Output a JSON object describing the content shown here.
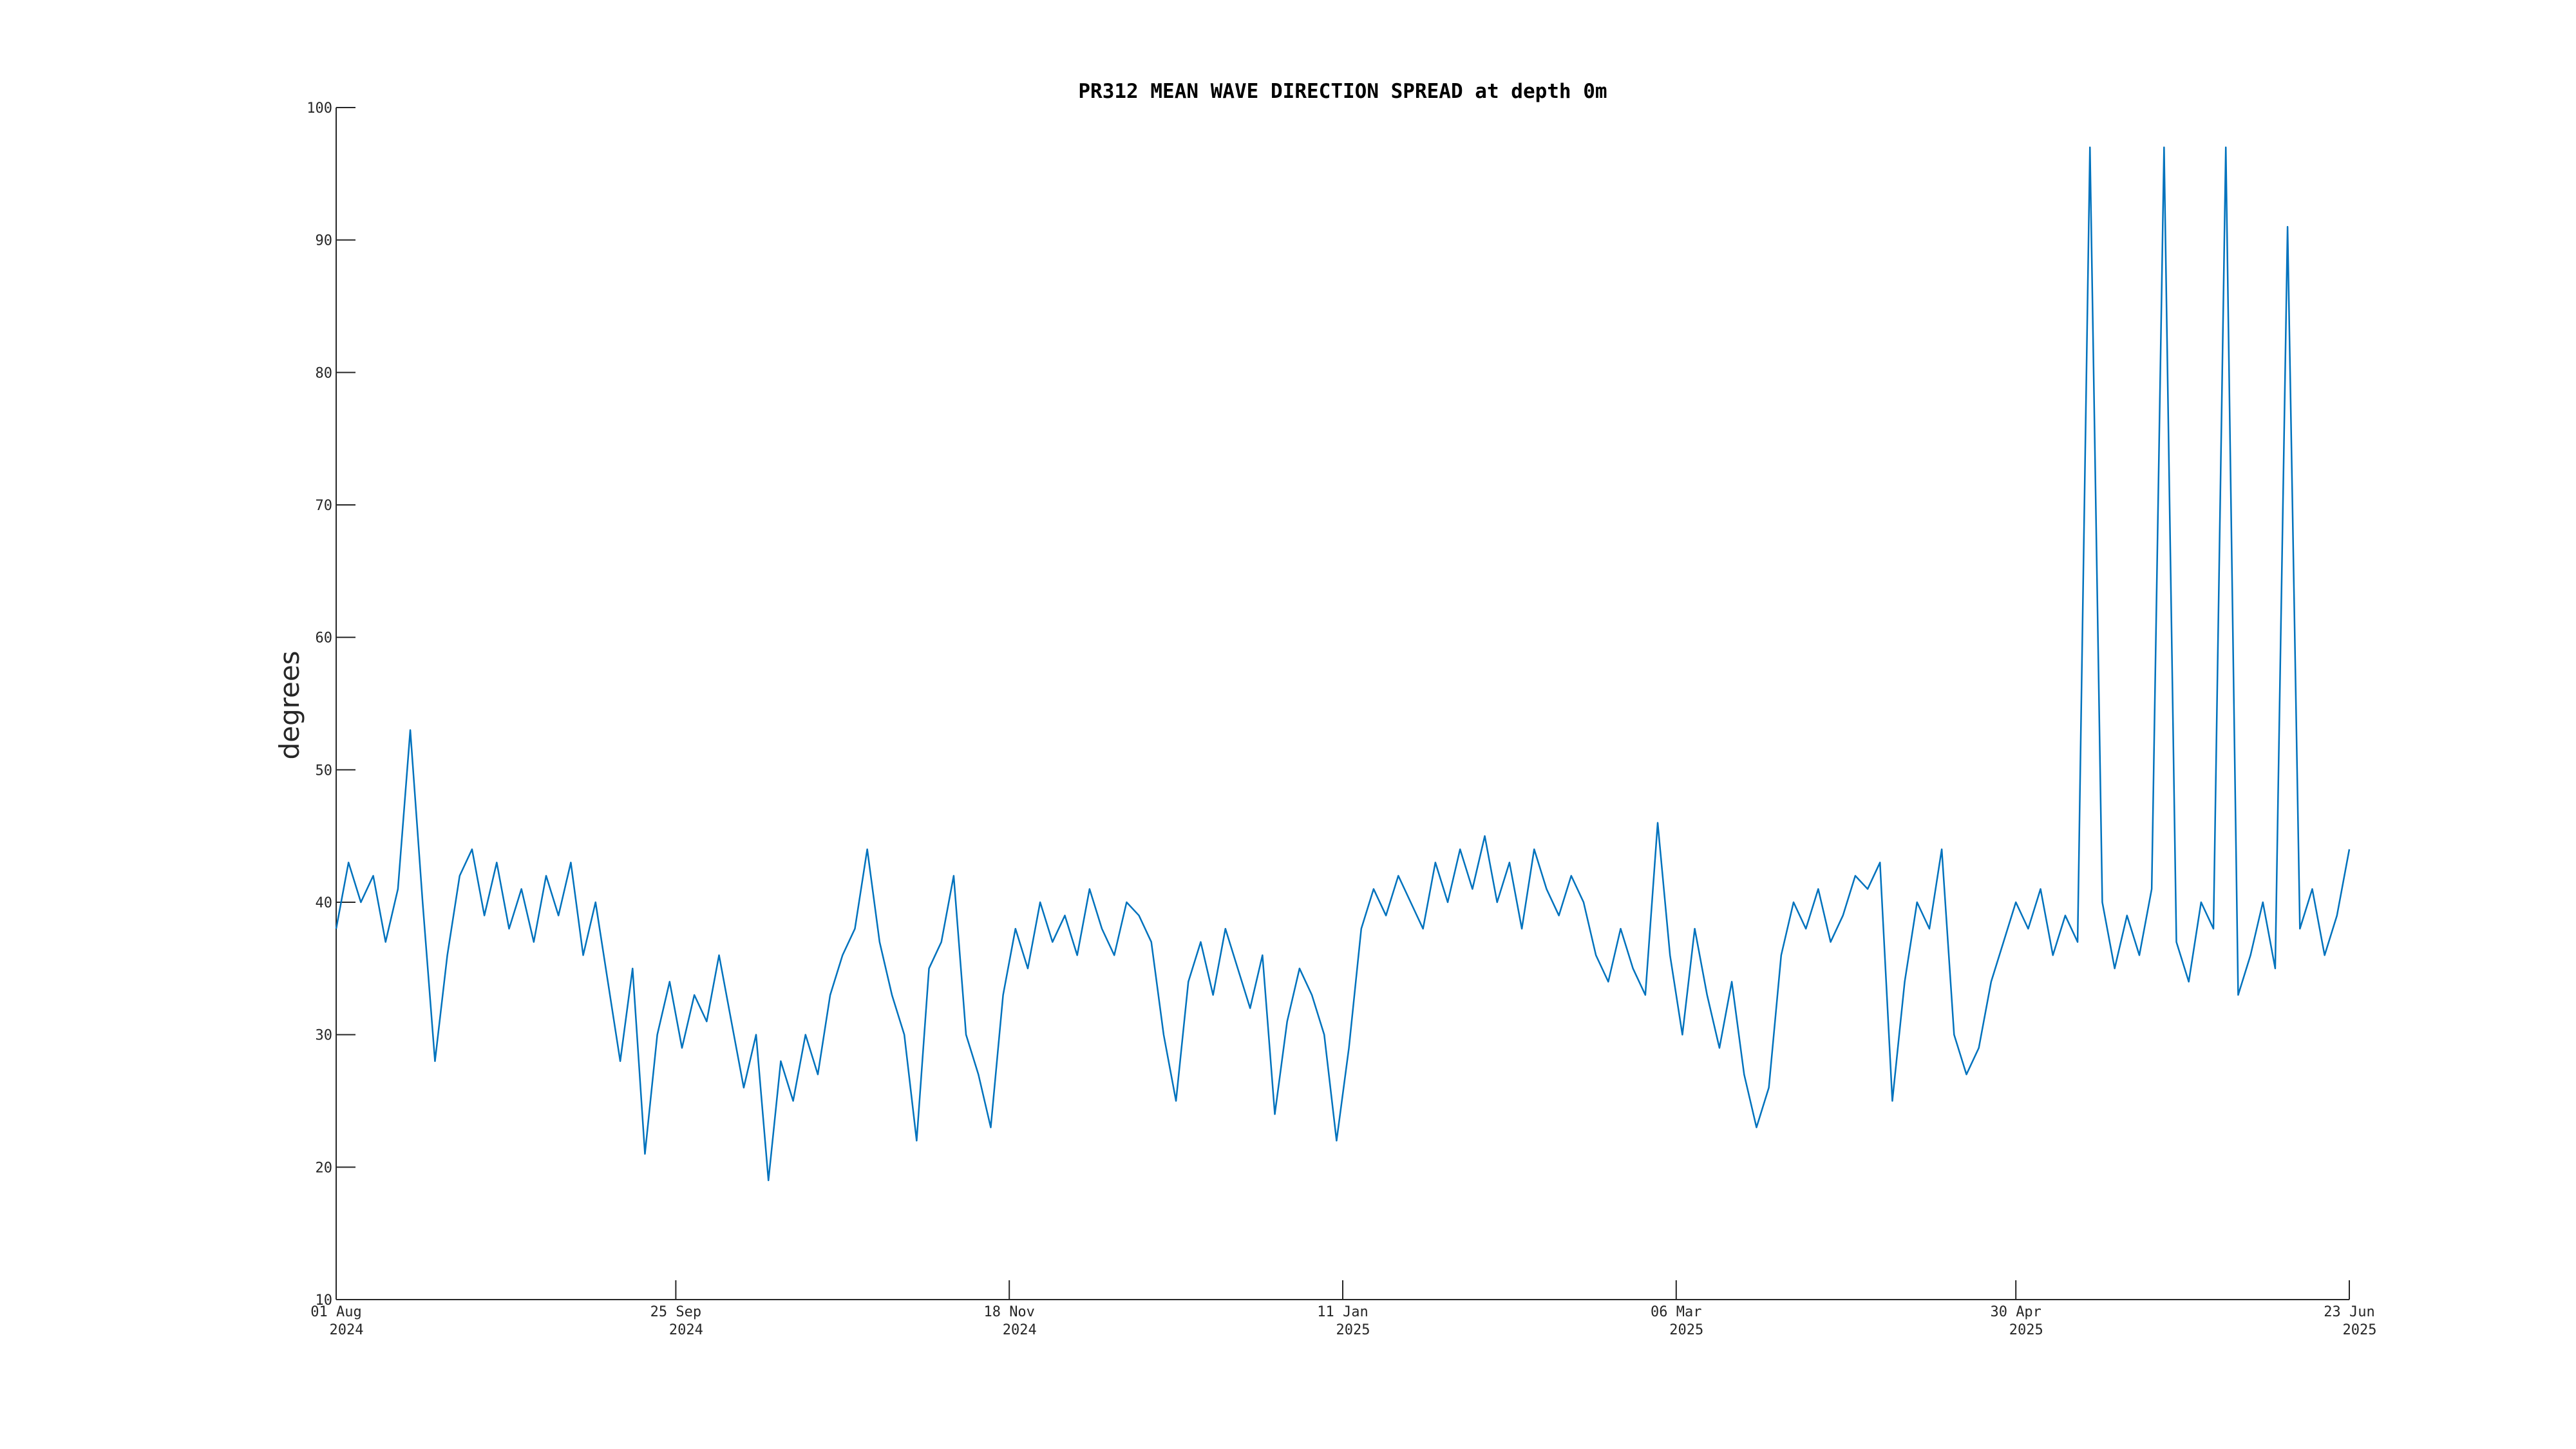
{
  "chart_data": {
    "type": "line",
    "title": "PR312 MEAN WAVE DIRECTION SPREAD at depth 0m",
    "y_label": "degrees",
    "color": "#0072bd",
    "x": [
      "2024-08-01",
      "2024-08-03",
      "2024-08-05",
      "2024-08-07",
      "2024-08-09",
      "2024-08-11",
      "2024-08-13",
      "2024-08-15",
      "2024-08-17",
      "2024-08-19",
      "2024-08-21",
      "2024-08-23",
      "2024-08-25",
      "2024-08-27",
      "2024-08-29",
      "2024-08-31",
      "2024-09-02",
      "2024-09-04",
      "2024-09-06",
      "2024-09-08",
      "2024-09-10",
      "2024-09-12",
      "2024-09-14",
      "2024-09-16",
      "2024-09-18",
      "2024-09-20",
      "2024-09-22",
      "2024-09-24",
      "2024-09-26",
      "2024-09-28",
      "2024-09-30",
      "2024-10-02",
      "2024-10-04",
      "2024-10-06",
      "2024-10-08",
      "2024-10-10",
      "2024-10-12",
      "2024-10-14",
      "2024-10-16",
      "2024-10-18",
      "2024-10-20",
      "2024-10-22",
      "2024-10-24",
      "2024-10-26",
      "2024-10-28",
      "2024-10-30",
      "2024-11-01",
      "2024-11-03",
      "2024-11-05",
      "2024-11-07",
      "2024-11-09",
      "2024-11-11",
      "2024-11-13",
      "2024-11-15",
      "2024-11-17",
      "2024-11-19",
      "2024-11-21",
      "2024-11-23",
      "2024-11-25",
      "2024-11-27",
      "2024-11-29",
      "2024-12-01",
      "2024-12-03",
      "2024-12-05",
      "2024-12-07",
      "2024-12-09",
      "2024-12-11",
      "2024-12-13",
      "2024-12-15",
      "2024-12-17",
      "2024-12-19",
      "2024-12-21",
      "2024-12-23",
      "2024-12-25",
      "2024-12-27",
      "2024-12-29",
      "2024-12-31",
      "2025-01-02",
      "2025-01-04",
      "2025-01-06",
      "2025-01-08",
      "2025-01-10",
      "2025-01-12",
      "2025-01-14",
      "2025-01-16",
      "2025-01-18",
      "2025-01-20",
      "2025-01-22",
      "2025-01-24",
      "2025-01-26",
      "2025-01-28",
      "2025-01-30",
      "2025-02-01",
      "2025-02-03",
      "2025-02-05",
      "2025-02-07",
      "2025-02-09",
      "2025-02-11",
      "2025-02-13",
      "2025-02-15",
      "2025-02-17",
      "2025-02-19",
      "2025-02-21",
      "2025-02-23",
      "2025-02-25",
      "2025-02-27",
      "2025-03-01",
      "2025-03-03",
      "2025-03-05",
      "2025-03-07",
      "2025-03-09",
      "2025-03-11",
      "2025-03-13",
      "2025-03-15",
      "2025-03-17",
      "2025-03-19",
      "2025-03-21",
      "2025-03-23",
      "2025-03-25",
      "2025-03-27",
      "2025-03-29",
      "2025-03-31",
      "2025-04-02",
      "2025-04-04",
      "2025-04-06",
      "2025-04-08",
      "2025-04-10",
      "2025-04-12",
      "2025-04-14",
      "2025-04-16",
      "2025-04-18",
      "2025-04-20",
      "2025-04-22",
      "2025-04-24",
      "2025-04-26",
      "2025-04-28",
      "2025-04-30",
      "2025-05-02",
      "2025-05-04",
      "2025-05-06",
      "2025-05-08",
      "2025-05-10",
      "2025-05-12",
      "2025-05-14",
      "2025-05-16",
      "2025-05-18",
      "2025-05-20",
      "2025-05-22",
      "2025-05-24",
      "2025-05-26",
      "2025-05-28",
      "2025-05-30",
      "2025-06-01",
      "2025-06-03",
      "2025-06-05",
      "2025-06-07",
      "2025-06-09",
      "2025-06-11",
      "2025-06-13",
      "2025-06-15",
      "2025-06-17",
      "2025-06-19",
      "2025-06-21",
      "2025-06-23"
    ],
    "values": [
      38,
      43,
      40,
      42,
      37,
      41,
      53,
      40,
      28,
      36,
      42,
      44,
      39,
      43,
      38,
      41,
      37,
      42,
      39,
      43,
      36,
      40,
      34,
      28,
      35,
      21,
      30,
      34,
      29,
      33,
      31,
      36,
      31,
      26,
      30,
      19,
      28,
      25,
      30,
      27,
      33,
      36,
      38,
      44,
      37,
      33,
      30,
      22,
      35,
      37,
      42,
      30,
      27,
      23,
      33,
      38,
      35,
      40,
      37,
      39,
      36,
      41,
      38,
      36,
      40,
      39,
      37,
      30,
      25,
      34,
      37,
      33,
      38,
      35,
      32,
      36,
      24,
      31,
      35,
      33,
      30,
      22,
      29,
      38,
      41,
      39,
      42,
      40,
      38,
      43,
      40,
      44,
      41,
      45,
      40,
      43,
      38,
      44,
      41,
      39,
      42,
      40,
      36,
      34,
      38,
      35,
      33,
      46,
      36,
      30,
      38,
      33,
      29,
      34,
      27,
      23,
      26,
      36,
      40,
      38,
      41,
      37,
      39,
      42,
      41,
      43,
      25,
      34,
      40,
      38,
      44,
      30,
      27,
      29,
      34,
      37,
      40,
      38,
      41,
      36,
      39,
      37,
      97,
      40,
      35,
      39,
      36,
      41,
      97,
      37,
      34,
      40,
      38,
      97,
      33,
      36,
      40,
      35,
      91,
      38,
      41,
      36,
      39,
      44
    ],
    "xlim": [
      "2024-08-01",
      "2025-06-23"
    ],
    "xticks": [
      {
        "value": "2024-08-01",
        "label": "01 Aug 2024"
      },
      {
        "value": "2024-09-25",
        "label": "25 Sep 2024"
      },
      {
        "value": "2024-11-18",
        "label": "18 Nov 2024"
      },
      {
        "value": "2025-01-11",
        "label": "11 Jan 2025"
      },
      {
        "value": "2025-03-06",
        "label": "06 Mar 2025"
      },
      {
        "value": "2025-04-30",
        "label": "30 Apr 2025"
      },
      {
        "value": "2025-06-23",
        "label": "23 Jun 2025"
      }
    ],
    "ylim": [
      10,
      100
    ],
    "yticks": [
      10,
      20,
      30,
      40,
      50,
      60,
      70,
      80,
      90,
      100
    ],
    "grid": false
  }
}
